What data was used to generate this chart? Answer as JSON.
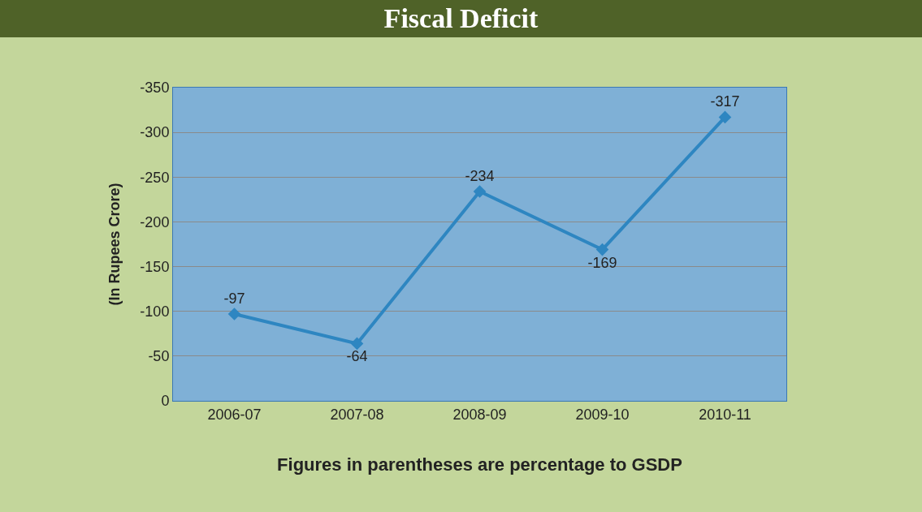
{
  "chart_data": {
    "type": "line",
    "title": "Fiscal Deficit",
    "xlabel": "Figures in parentheses are percentage to GSDP",
    "ylabel": "(In Rupees Crore)",
    "categories": [
      "2006-07",
      "2007-08",
      "2008-09",
      "2009-10",
      "2010-11"
    ],
    "series": [
      {
        "color": "#2e86c1",
        "values": [
          -97,
          -64,
          -234,
          -169,
          -317
        ]
      }
    ],
    "ylim": [
      0,
      -350
    ],
    "yticks": [
      0,
      -50,
      -100,
      -150,
      -200,
      -250,
      -300,
      -350
    ],
    "grid": "y",
    "marker": "diamond",
    "line_style": "solid",
    "data_labels": true
  }
}
